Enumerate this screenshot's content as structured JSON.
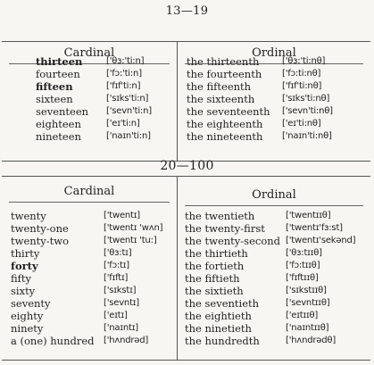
{
  "section1": {
    "title": "13—19",
    "cardinal_header": "Cardinal",
    "ordinal_header": "Ordinal",
    "cardinal": [
      {
        "word": "thirteen",
        "pron": "['θɜ:'ti:n]",
        "bold": true
      },
      {
        "word": "fourteen",
        "pron": "['fɔ:'ti:n]",
        "bold": false
      },
      {
        "word": "fifteen",
        "pron": "['fɪf'ti:n]",
        "bold": true
      },
      {
        "word": "sixteen",
        "pron": "['sɪks'ti:n]",
        "bold": false
      },
      {
        "word": "seventeen",
        "pron": "['sevn'ti:n]",
        "bold": false
      },
      {
        "word": "eighteen",
        "pron": "['eɪ'ti:n]",
        "bold": false
      },
      {
        "word": "nineteen",
        "pron": "['naɪn'ti:n]",
        "bold": false
      }
    ],
    "ordinal": [
      {
        "word": "the thirteenth",
        "pron": "['θɜ:'ti:nθ]"
      },
      {
        "word": "the fourteenth",
        "pron": "['fɔ:ti:nθ]"
      },
      {
        "word": "the fifteenth",
        "pron": "['fɪf'ti:nθ]"
      },
      {
        "word": "the sixteenth",
        "pron": "['sɪks'ti:nθ]"
      },
      {
        "word": "the seventeenth",
        "pron": "['sevn'ti:nθ]"
      },
      {
        "word": "the eighteenth",
        "pron": "['eɪ'ti:nθ]"
      },
      {
        "word": "the nineteenth",
        "pron": "['naɪn'ti:nθ]"
      }
    ]
  },
  "section2": {
    "title": "20—100",
    "cardinal_header": "Cardinal",
    "ordinal_header": "Ordinal",
    "cardinal": [
      {
        "word": "twenty",
        "pron": "['twentɪ]",
        "bold": false
      },
      {
        "word": "twenty-one",
        "pron": "['twentɪ 'wʌn]",
        "bold": false
      },
      {
        "word": "twenty-two",
        "pron": "['twentɪ 'tu:]",
        "bold": false
      },
      {
        "word": "thirty",
        "pron": "['θɜ:tɪ]",
        "bold": false
      },
      {
        "word": "forty",
        "pron": "['fɔ:tɪ]",
        "bold": true
      },
      {
        "word": "fifty",
        "pron": "['fɪftɪ]",
        "bold": false
      },
      {
        "word": "sixty",
        "pron": "['sɪkstɪ]",
        "bold": false
      },
      {
        "word": "seventy",
        "pron": "['sevntɪ]",
        "bold": false
      },
      {
        "word": "eighty",
        "pron": "['eɪtɪ]",
        "bold": false
      },
      {
        "word": "ninety",
        "pron": "['naɪntɪ]",
        "bold": false
      },
      {
        "word": "a (one) hundred",
        "pron": "['hʌndrəd]",
        "bold": false
      }
    ],
    "ordinal": [
      {
        "word": "the twentieth",
        "pron": "['twentɪɪθ]"
      },
      {
        "word": "the twenty-first",
        "pron": "['twentɪ'fɜ:st]"
      },
      {
        "word": "the twenty-second",
        "pron": "['twentɪ'sekənd]"
      },
      {
        "word": "the thirtieth",
        "pron": "['θɜ:tɪɪθ]"
      },
      {
        "word": "the fortieth",
        "pron": "['fɔ:tɪɪθ]"
      },
      {
        "word": "the fiftieth",
        "pron": "['fɪftɪɪθ]"
      },
      {
        "word": "the sixtieth",
        "pron": "['sɪkstɪɪθ]"
      },
      {
        "word": "the seventieth",
        "pron": "['sevntɪɪθ]"
      },
      {
        "word": "the eightieth",
        "pron": "['eɪtɪɪθ]"
      },
      {
        "word": "the ninetieth",
        "pron": "['naɪntɪɪθ]"
      },
      {
        "word": "the hundredth",
        "pron": "['hʌndrədθ]"
      }
    ]
  }
}
